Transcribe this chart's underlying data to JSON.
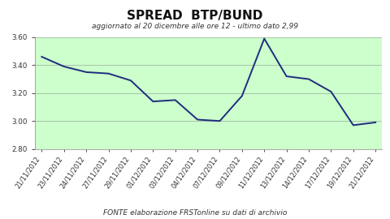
{
  "title": "SPREAD  BTP/BUND",
  "subtitle": "aggiornato al 20 dicembre alle ore 12 - ultimo dato 2,99",
  "x_labels": [
    "21/11/2012",
    "23/11/2012",
    "24/11/2012",
    "27/11/2012",
    "29/11/2012",
    "01/12/2012",
    "03/12/2012",
    "04/12/2012",
    "07/12/2012",
    "09/12/2012",
    "11/12/2012",
    "13/12/2012",
    "14/12/2012",
    "17/12/2012",
    "19/12/2012",
    "21/12/2012"
  ],
  "y_values": [
    3.46,
    3.39,
    3.35,
    3.34,
    3.29,
    3.14,
    3.15,
    3.01,
    3.0,
    3.18,
    3.59,
    3.32,
    3.3,
    3.21,
    2.97,
    2.99
  ],
  "ylim": [
    2.8,
    3.6
  ],
  "yticks": [
    2.8,
    3.0,
    3.2,
    3.4,
    3.6
  ],
  "line_color": "#1f2d7e",
  "plot_bg_color": "#ccffcc",
  "outer_bg_color": "#ffffff",
  "grid_color": "#888888",
  "footer": "FONTE elaborazione FRSTonline su dati di archivio",
  "title_fontsize": 11,
  "subtitle_fontsize": 6.5,
  "tick_fontsize": 5.8,
  "footer_fontsize": 6.5
}
